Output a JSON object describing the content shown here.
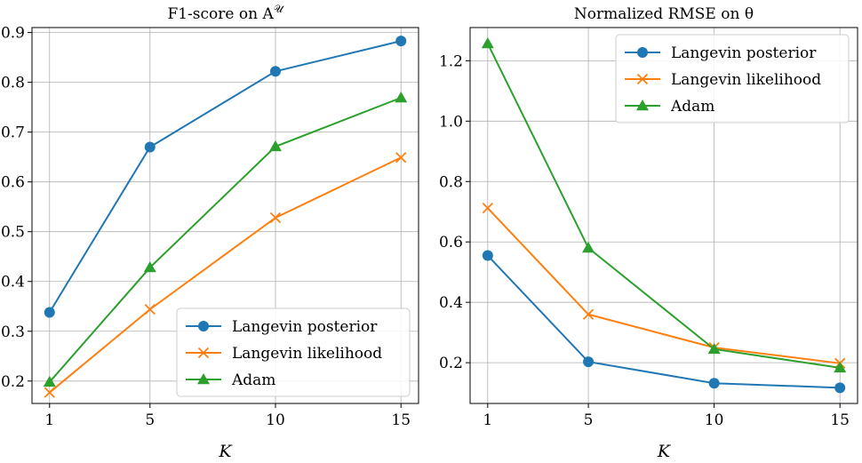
{
  "chart_data": [
    {
      "type": "line",
      "title": "F1-score on A",
      "title_sup": "𝒰",
      "xlabel": "K",
      "ylabel": "",
      "x": [
        1,
        5,
        10,
        15
      ],
      "xticks": [
        "1",
        "5",
        "10",
        "15"
      ],
      "ylim": [
        0.155,
        0.91
      ],
      "yticks": [
        0.2,
        0.3,
        0.4,
        0.5,
        0.6,
        0.7,
        0.8,
        0.9
      ],
      "ytick_labels": [
        "0.2",
        "0.3",
        "0.4",
        "0.5",
        "0.6",
        "0.7",
        "0.8",
        "0.9"
      ],
      "grid": true,
      "legend_position": "lower-right",
      "series": [
        {
          "name": "Langevin posterior",
          "color": "#1f77b4",
          "marker": "circle",
          "values": [
            0.338,
            0.67,
            0.822,
            0.883
          ]
        },
        {
          "name": "Langevin likelihood",
          "color": "#ff7f0e",
          "marker": "x",
          "values": [
            0.177,
            0.344,
            0.528,
            0.649
          ]
        },
        {
          "name": "Adam",
          "color": "#2ca02c",
          "marker": "triangle",
          "values": [
            0.198,
            0.428,
            0.671,
            0.769
          ]
        }
      ]
    },
    {
      "type": "line",
      "title": "Normalized RMSE on θ",
      "xlabel": "K",
      "ylabel": "",
      "x": [
        1,
        5,
        10,
        15
      ],
      "xticks": [
        "1",
        "5",
        "10",
        "15"
      ],
      "ylim": [
        0.065,
        1.31
      ],
      "yticks": [
        0.2,
        0.4,
        0.6,
        0.8,
        1.0,
        1.2
      ],
      "ytick_labels": [
        "0.2",
        "0.4",
        "0.6",
        "0.8",
        "1.0",
        "1.2"
      ],
      "grid": true,
      "legend_position": "upper-right",
      "series": [
        {
          "name": "Langevin posterior",
          "color": "#1f77b4",
          "marker": "circle",
          "values": [
            0.555,
            0.203,
            0.132,
            0.117
          ]
        },
        {
          "name": "Langevin likelihood",
          "color": "#ff7f0e",
          "marker": "x",
          "values": [
            0.712,
            0.36,
            0.25,
            0.198
          ]
        },
        {
          "name": "Adam",
          "color": "#2ca02c",
          "marker": "triangle",
          "values": [
            1.257,
            0.58,
            0.245,
            0.183
          ]
        }
      ]
    }
  ]
}
